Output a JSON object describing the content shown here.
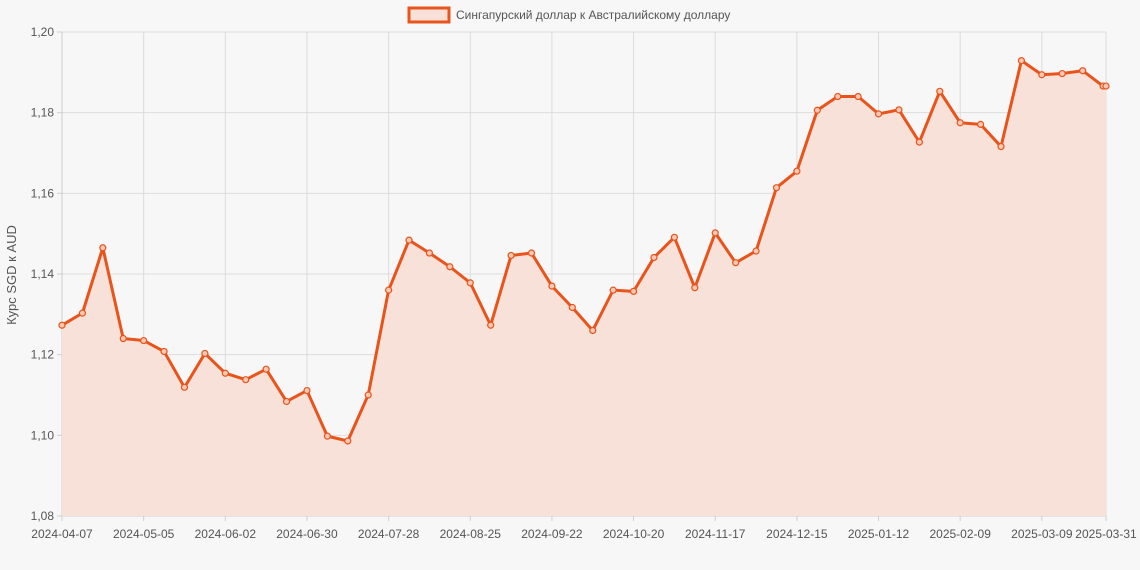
{
  "chart_data": {
    "type": "area",
    "legend": {
      "position": "top",
      "label": "Сингапурский доллар к Австралийскому доллару"
    },
    "ylabel": "Курс SGD к AUD",
    "xlabel": "",
    "ylim": [
      1.08,
      1.2
    ],
    "y_ticks": [
      "1,08",
      "1,10",
      "1,12",
      "1,14",
      "1,16",
      "1,18",
      "1,20"
    ],
    "x_tick_labels": [
      "2024-04-07",
      "2024-05-05",
      "2024-06-02",
      "2024-06-30",
      "2024-07-28",
      "2024-08-25",
      "2024-09-22",
      "2024-10-20",
      "2024-11-17",
      "2024-12-15",
      "2025-01-12",
      "2025-02-09",
      "2025-03-09",
      "2025-03-31"
    ],
    "grid": true,
    "series": [
      {
        "name": "Сингапурский доллар к Австралийскому доллару",
        "color": "#e8541b",
        "fill": "#f8e1d8",
        "x": [
          "2024-04-07",
          "2024-04-14",
          "2024-04-21",
          "2024-04-28",
          "2024-05-05",
          "2024-05-12",
          "2024-05-19",
          "2024-05-26",
          "2024-06-02",
          "2024-06-09",
          "2024-06-16",
          "2024-06-23",
          "2024-06-30",
          "2024-07-07",
          "2024-07-14",
          "2024-07-21",
          "2024-07-28",
          "2024-08-04",
          "2024-08-11",
          "2024-08-18",
          "2024-08-25",
          "2024-09-01",
          "2024-09-08",
          "2024-09-15",
          "2024-09-22",
          "2024-09-29",
          "2024-10-06",
          "2024-10-13",
          "2024-10-20",
          "2024-10-27",
          "2024-11-03",
          "2024-11-10",
          "2024-11-17",
          "2024-11-24",
          "2024-12-01",
          "2024-12-08",
          "2024-12-15",
          "2024-12-22",
          "2024-12-29",
          "2025-01-05",
          "2025-01-12",
          "2025-01-19",
          "2025-01-26",
          "2025-02-02",
          "2025-02-09",
          "2025-02-16",
          "2025-02-23",
          "2025-03-02",
          "2025-03-09",
          "2025-03-16",
          "2025-03-23",
          "2025-03-30",
          "2025-03-31"
        ],
        "values": [
          1.1273,
          1.1303,
          1.1465,
          1.124,
          1.1235,
          1.1208,
          1.1119,
          1.1203,
          1.1154,
          1.1138,
          1.1164,
          1.1084,
          1.1111,
          1.0998,
          1.0986,
          1.11,
          1.136,
          1.1484,
          1.1452,
          1.1418,
          1.1378,
          1.1273,
          1.1446,
          1.1452,
          1.137,
          1.1317,
          1.126,
          1.136,
          1.1357,
          1.1441,
          1.1491,
          1.1366,
          1.1502,
          1.1428,
          1.1457,
          1.1614,
          1.1655,
          1.1806,
          1.184,
          1.184,
          1.1797,
          1.1807,
          1.1727,
          1.1853,
          1.1775,
          1.1771,
          1.1716,
          1.1929,
          1.1894,
          1.1897,
          1.1904,
          1.1866,
          1.1866
        ]
      }
    ]
  }
}
